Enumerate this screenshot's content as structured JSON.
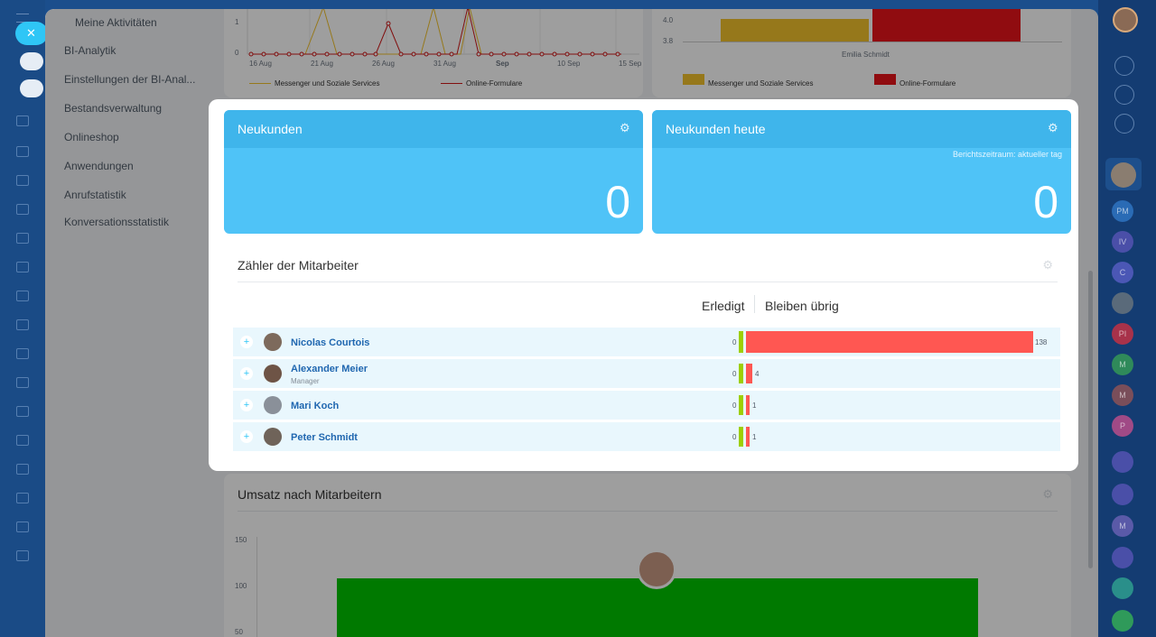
{
  "colors": {
    "kpi_bg": "#4fc3f7",
    "kpi_header": "#3fb5eb",
    "done": "#9dcf00",
    "remaining": "#ff5752",
    "link": "#2067b0"
  },
  "menu": {
    "sub_item": "Meine Aktivitäten",
    "items": [
      "BI-Analytik",
      "Einstellungen der BI-Anal...",
      "Bestandsverwaltung",
      "Onlineshop",
      "Anwendungen",
      "Anrufstatistik",
      "Konversationsstatistik"
    ]
  },
  "bg_line_chart": {
    "y_ticks": [
      "1",
      "0"
    ],
    "x_ticks": [
      "16 Aug",
      "21 Aug",
      "26 Aug",
      "31 Aug",
      "Sep",
      "10 Sep",
      "15 Sep"
    ],
    "legend": [
      "Messenger und Soziale Services",
      "Online-Formulare"
    ]
  },
  "bg_bar_chart": {
    "y_ticks": [
      "4.0",
      "3.8"
    ],
    "x_label": "Emilia Schmidt",
    "legend": [
      "Messenger und Soziale Services",
      "Online-Formulare"
    ]
  },
  "kpi": [
    {
      "title": "Neukunden",
      "value": "0",
      "note": ""
    },
    {
      "title": "Neukunden heute",
      "value": "0",
      "note": "Berichtszeitraum: aktueller tag"
    }
  ],
  "counter": {
    "title": "Zähler der Mitarbeiter",
    "col_done": "Erledigt",
    "col_remaining": "Bleiben übrig",
    "rows": [
      {
        "name": "Nicolas Courtois",
        "position": "",
        "done": 0,
        "remaining": 138
      },
      {
        "name": "Alexander Meier",
        "position": "Manager",
        "done": 0,
        "remaining": 4
      },
      {
        "name": "Mari Koch",
        "position": "",
        "done": 0,
        "remaining": 1
      },
      {
        "name": "Peter Schmidt",
        "position": "",
        "done": 0,
        "remaining": 1
      }
    ]
  },
  "sales": {
    "title": "Umsatz nach Mitarbeitern",
    "y_ticks": [
      "150",
      "100",
      "50"
    ]
  },
  "right_rail": {
    "badges": [
      "PM",
      "IV",
      "C",
      "PI",
      "M",
      "M",
      "P",
      "M"
    ]
  }
}
